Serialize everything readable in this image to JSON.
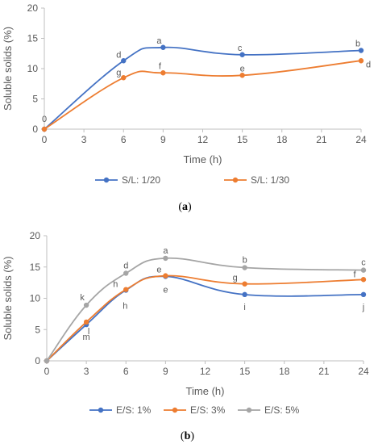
{
  "chart_data": [
    {
      "type": "line",
      "smooth": true,
      "caption": "(a)",
      "xlabel": "Time (h)",
      "ylabel": "Soluble solids (%)",
      "xlim": [
        0,
        24
      ],
      "ylim": [
        0,
        20
      ],
      "xticks": [
        0,
        3,
        6,
        9,
        12,
        15,
        18,
        21,
        24
      ],
      "yticks": [
        0,
        5,
        10,
        15,
        20
      ],
      "grid": false,
      "legend_position": "bottom",
      "series": [
        {
          "name": "S/L: 1/20",
          "color": "#4472C4",
          "x": [
            0,
            6,
            9,
            15,
            24
          ],
          "y": [
            0,
            11.3,
            13.5,
            12.3,
            13.0
          ],
          "labels": [
            "0",
            "d",
            "a",
            "c",
            "b"
          ]
        },
        {
          "name": "S/L: 1/30",
          "color": "#ED7D31",
          "x": [
            0,
            6,
            9,
            15,
            24
          ],
          "y": [
            0,
            8.5,
            9.3,
            8.9,
            11.3
          ],
          "labels": [
            "",
            "g",
            "f",
            "e",
            "d"
          ]
        }
      ]
    },
    {
      "type": "line",
      "smooth": true,
      "caption": "(b)",
      "xlabel": "Time (h)",
      "ylabel": "Soluble solids (%)",
      "xlim": [
        0,
        24
      ],
      "ylim": [
        0,
        20
      ],
      "xticks": [
        0,
        3,
        6,
        9,
        12,
        15,
        18,
        21,
        24
      ],
      "yticks": [
        0,
        5,
        10,
        15,
        20
      ],
      "grid": false,
      "legend_position": "bottom",
      "series": [
        {
          "name": "E/S: 1%",
          "color": "#4472C4",
          "x": [
            0,
            3,
            6,
            9,
            15,
            24
          ],
          "y": [
            0,
            5.8,
            11.3,
            13.5,
            10.6,
            10.6
          ],
          "labels": [
            "",
            "m",
            "h",
            "e",
            "i",
            "j"
          ]
        },
        {
          "name": "E/S: 3%",
          "color": "#ED7D31",
          "x": [
            0,
            3,
            6,
            9,
            15,
            24
          ],
          "y": [
            0,
            6.2,
            11.4,
            13.6,
            12.3,
            13.0
          ],
          "labels": [
            "",
            "l",
            "h",
            "e",
            "g",
            "f"
          ]
        },
        {
          "name": "E/S: 5%",
          "color": "#A5A5A5",
          "x": [
            0,
            3,
            6,
            9,
            15,
            24
          ],
          "y": [
            0,
            8.9,
            14.0,
            16.4,
            14.9,
            14.5
          ],
          "labels": [
            "",
            "k",
            "d",
            "a",
            "b",
            "c"
          ]
        }
      ]
    }
  ]
}
